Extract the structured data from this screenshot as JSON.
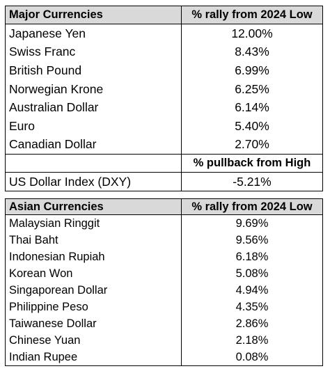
{
  "major": {
    "header": {
      "name": "Major Currencies",
      "value": "% rally from 2024 Low"
    },
    "rows": [
      {
        "name": "Japanese Yen",
        "value": "12.00%"
      },
      {
        "name": "Swiss Franc",
        "value": "8.43%"
      },
      {
        "name": "British Pound",
        "value": "6.99%"
      },
      {
        "name": "Norwegian Krone",
        "value": "6.25%"
      },
      {
        "name": "Australian Dollar",
        "value": "6.14%"
      },
      {
        "name": "Euro",
        "value": "5.40%"
      },
      {
        "name": "Canadian Dollar",
        "value": "2.70%"
      }
    ],
    "sub_header": {
      "value": "% pullback from High"
    },
    "dxy": {
      "name": "US Dollar Index (DXY)",
      "value": "-5.21%"
    }
  },
  "asian": {
    "header": {
      "name": "Asian Currencies",
      "value": "% rally from 2024 Low"
    },
    "rows": [
      {
        "name": "Malaysian Ringgit",
        "value": "9.69%"
      },
      {
        "name": "Thai Baht",
        "value": "9.56%"
      },
      {
        "name": "Indonesian Rupiah",
        "value": "6.18%"
      },
      {
        "name": "Korean Won",
        "value": "5.08%"
      },
      {
        "name": "Singaporean Dollar",
        "value": "4.94%"
      },
      {
        "name": "Philippine Peso",
        "value": "4.35%"
      },
      {
        "name": "Taiwanese Dollar",
        "value": "2.86%"
      },
      {
        "name": "Chinese Yuan",
        "value": "2.18%"
      },
      {
        "name": "Indian Rupee",
        "value": "0.08%"
      }
    ]
  }
}
